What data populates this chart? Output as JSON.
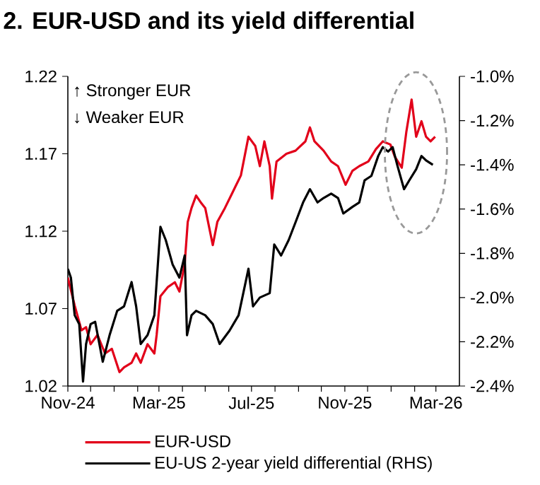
{
  "chart_data": {
    "type": "line",
    "title": "2. EUR-USD and its yield differential",
    "annotations": [
      "↑ Stronger EUR",
      "↓ Weaker EUR"
    ],
    "xlim": [
      "2024-11-01",
      "2026-04-01"
    ],
    "xticks": [
      {
        "value": "2024-11-01",
        "label": "Nov-24"
      },
      {
        "value": "2024-12-01",
        "label": null
      },
      {
        "value": "2025-01-01",
        "label": null
      },
      {
        "value": "2025-02-01",
        "label": null
      },
      {
        "value": "2025-03-01",
        "label": "Mar-25"
      },
      {
        "value": "2025-04-01",
        "label": null
      },
      {
        "value": "2025-05-01",
        "label": null
      },
      {
        "value": "2025-06-01",
        "label": null
      },
      {
        "value": "2025-07-01",
        "label": "Jul-25"
      },
      {
        "value": "2025-08-01",
        "label": null
      },
      {
        "value": "2025-09-01",
        "label": null
      },
      {
        "value": "2025-10-01",
        "label": null
      },
      {
        "value": "2025-11-01",
        "label": "Nov-25"
      },
      {
        "value": "2025-12-01",
        "label": null
      },
      {
        "value": "2026-01-01",
        "label": null
      },
      {
        "value": "2026-02-01",
        "label": null
      },
      {
        "value": "2026-03-01",
        "label": "Mar-26"
      }
    ],
    "ylim": [
      1.02,
      1.22
    ],
    "yticks": [
      1.02,
      1.07,
      1.12,
      1.17,
      1.22
    ],
    "y2lim": [
      -2.4,
      -1.0
    ],
    "y2ticks": [
      {
        "value": -2.4,
        "label": "-2.4%"
      },
      {
        "value": -2.2,
        "label": "-2.2%"
      },
      {
        "value": -2.0,
        "label": "-2.0%"
      },
      {
        "value": -1.8,
        "label": "-1.8%"
      },
      {
        "value": -1.6,
        "label": "-1.6%"
      },
      {
        "value": -1.4,
        "label": "-1.4%"
      },
      {
        "value": -1.2,
        "label": "-1.2%"
      },
      {
        "value": -1.0,
        "label": "-1.0%"
      }
    ],
    "legend": "bottom",
    "series": [
      {
        "name": "EUR-USD",
        "color": "#e2001a",
        "x": [
          "2024-11-01",
          "2024-11-10",
          "2024-11-19",
          "2024-11-25",
          "2024-12-01",
          "2024-12-10",
          "2024-12-20",
          "2024-12-29",
          "2025-01-08",
          "2025-01-14",
          "2025-01-24",
          "2025-01-30",
          "2025-02-05",
          "2025-02-14",
          "2025-02-23",
          "2025-02-26",
          "2025-03-03",
          "2025-03-13",
          "2025-03-22",
          "2025-03-28",
          "2025-04-04",
          "2025-04-08",
          "2025-04-13",
          "2025-04-19",
          "2025-04-26",
          "2025-05-01",
          "2025-05-11",
          "2025-05-17",
          "2025-05-27",
          "2025-06-05",
          "2025-06-11",
          "2025-06-17",
          "2025-06-27",
          "2025-07-06",
          "2025-07-12",
          "2025-07-18",
          "2025-07-25",
          "2025-07-28",
          "2025-08-03",
          "2025-08-16",
          "2025-08-28",
          "2025-09-10",
          "2025-09-16",
          "2025-09-22",
          "2025-10-04",
          "2025-10-14",
          "2025-10-23",
          "2025-11-02",
          "2025-11-11",
          "2025-11-20",
          "2025-12-02",
          "2025-12-12",
          "2025-12-21",
          "2025-12-31",
          "2026-01-06",
          "2026-01-15",
          "2026-01-21",
          "2026-01-28",
          "2026-02-03",
          "2026-02-10",
          "2026-02-16",
          "2026-02-22",
          "2026-02-28"
        ],
        "values": [
          1.09,
          1.072,
          1.056,
          1.058,
          1.047,
          1.053,
          1.041,
          1.044,
          1.029,
          1.032,
          1.035,
          1.041,
          1.035,
          1.047,
          1.041,
          1.053,
          1.078,
          1.084,
          1.087,
          1.081,
          1.099,
          1.126,
          1.135,
          1.143,
          1.138,
          1.135,
          1.111,
          1.126,
          1.135,
          1.144,
          1.15,
          1.156,
          1.181,
          1.175,
          1.162,
          1.178,
          1.162,
          1.141,
          1.165,
          1.17,
          1.172,
          1.178,
          1.187,
          1.178,
          1.172,
          1.165,
          1.162,
          1.15,
          1.159,
          1.162,
          1.165,
          1.173,
          1.178,
          1.176,
          1.168,
          1.161,
          1.184,
          1.205,
          1.181,
          1.191,
          1.181,
          1.178,
          1.181
        ]
      },
      {
        "name": "EU-US 2-year yield differential (RHS)",
        "color": "#000000",
        "axis": "y2",
        "x": [
          "2024-11-01",
          "2024-11-05",
          "2024-11-10",
          "2024-11-16",
          "2024-11-21",
          "2024-11-25",
          "2024-12-01",
          "2024-12-07",
          "2024-12-17",
          "2024-12-26",
          "2025-01-05",
          "2025-01-14",
          "2025-01-24",
          "2025-01-30",
          "2025-02-05",
          "2025-02-14",
          "2025-02-23",
          "2025-03-03",
          "2025-03-10",
          "2025-03-19",
          "2025-03-28",
          "2025-04-04",
          "2025-04-07",
          "2025-04-13",
          "2025-04-19",
          "2025-05-01",
          "2025-05-11",
          "2025-05-20",
          "2025-06-02",
          "2025-06-14",
          "2025-06-27",
          "2025-07-03",
          "2025-07-12",
          "2025-07-25",
          "2025-07-31",
          "2025-08-09",
          "2025-08-19",
          "2025-08-28",
          "2025-09-07",
          "2025-09-16",
          "2025-09-26",
          "2025-10-04",
          "2025-10-14",
          "2025-10-23",
          "2025-10-30",
          "2025-11-11",
          "2025-11-20",
          "2025-11-27",
          "2025-12-06",
          "2025-12-15",
          "2025-12-21",
          "2025-12-28",
          "2026-01-03",
          "2026-01-09",
          "2026-01-18",
          "2026-01-25",
          "2026-02-03",
          "2026-02-10",
          "2026-02-16",
          "2026-02-25"
        ],
        "values": [
          -1.87,
          -1.91,
          -2.08,
          -2.12,
          -2.38,
          -2.21,
          -2.12,
          -2.11,
          -2.29,
          -2.17,
          -2.06,
          -2.04,
          -1.93,
          -2.04,
          -2.21,
          -2.17,
          -2.08,
          -1.68,
          -1.74,
          -1.85,
          -1.91,
          -1.81,
          -2.17,
          -2.08,
          -2.06,
          -2.08,
          -2.12,
          -2.21,
          -2.15,
          -2.08,
          -1.87,
          -2.04,
          -2.0,
          -1.98,
          -1.76,
          -1.81,
          -1.74,
          -1.66,
          -1.57,
          -1.51,
          -1.57,
          -1.55,
          -1.53,
          -1.55,
          -1.62,
          -1.59,
          -1.57,
          -1.47,
          -1.45,
          -1.36,
          -1.32,
          -1.34,
          -1.32,
          -1.4,
          -1.51,
          -1.47,
          -1.42,
          -1.36,
          -1.38,
          -1.4
        ]
      }
    ]
  }
}
